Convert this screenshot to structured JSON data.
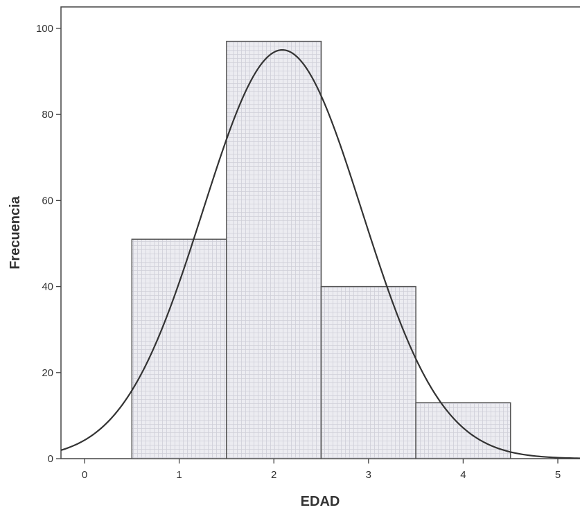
{
  "chart_data": {
    "type": "bar",
    "subtype": "histogram",
    "title": "",
    "xlabel": "EDAD",
    "ylabel": "Frecuencia",
    "bins": [
      {
        "from": 0.5,
        "to": 1.5,
        "value": 51
      },
      {
        "from": 1.5,
        "to": 2.5,
        "value": 97
      },
      {
        "from": 2.5,
        "to": 3.5,
        "value": 40
      },
      {
        "from": 3.5,
        "to": 4.5,
        "value": 13
      }
    ],
    "normal_curve": {
      "mean": 2.09,
      "sd": 0.84,
      "peak": 95
    },
    "xlim": [
      -0.25,
      5.25
    ],
    "ylim": [
      0,
      105
    ],
    "xticks": [
      "0",
      "1",
      "2",
      "3",
      "4",
      "5"
    ],
    "yticks": [
      "0",
      "20",
      "40",
      "60",
      "80",
      "100"
    ],
    "grid": false,
    "legend": "none",
    "colors": {
      "bar_fill": "#e9e9ef",
      "bar_stroke": "#555555",
      "bar_texture": "#c9c9d2",
      "curve": "#333333",
      "axis": "#444444"
    }
  }
}
